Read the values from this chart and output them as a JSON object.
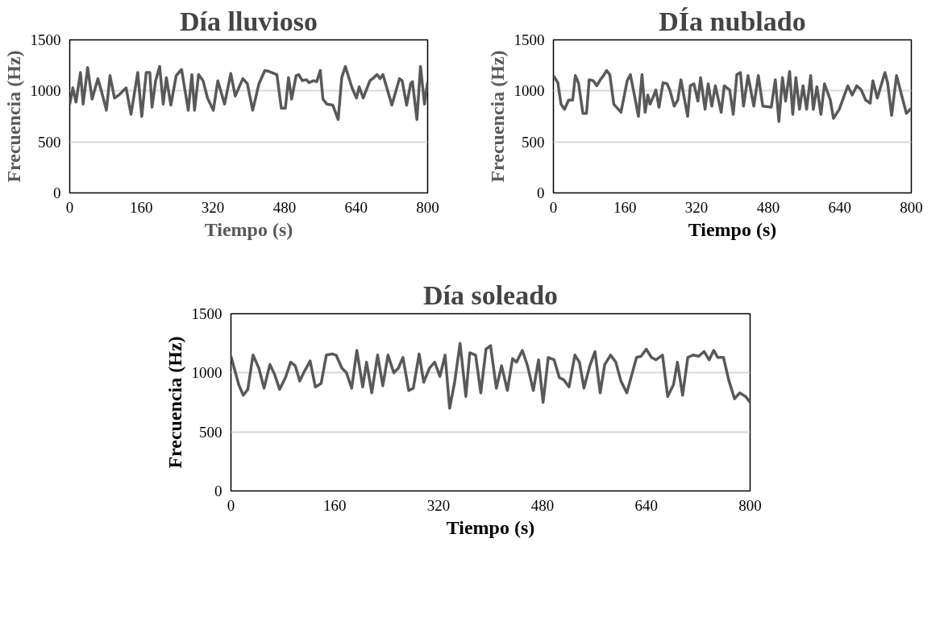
{
  "chart_data": [
    {
      "type": "line",
      "title": "Día lluvioso",
      "xlabel": "Tiempo (s)",
      "ylabel": "Frecuencia (Hz)",
      "xlim": [
        0,
        800
      ],
      "ylim": [
        0,
        1500
      ],
      "xticks": [
        0,
        160,
        320,
        480,
        640,
        800
      ],
      "yticks": [
        0,
        500,
        1000,
        1500
      ],
      "grid": "y",
      "series": [
        {
          "color": "#595959",
          "x": [
            0,
            7,
            14,
            24,
            30,
            40,
            50,
            63,
            70,
            82,
            90,
            100,
            110,
            126,
            137,
            152,
            161,
            171,
            179,
            184,
            192,
            201,
            209,
            216,
            226,
            238,
            250,
            265,
            273,
            279,
            288,
            298,
            308,
            321,
            331,
            346,
            360,
            370,
            387,
            397,
            409,
            423,
            436,
            446,
            463,
            473,
            482,
            489,
            496,
            506,
            512,
            520,
            529,
            535,
            545,
            552,
            560,
            566,
            575,
            588,
            600,
            608,
            616,
            631,
            641,
            647,
            656,
            671,
            677,
            687,
            694,
            700,
            720,
            737,
            743,
            753,
            762,
            766,
            776,
            784,
            793,
            800
          ],
          "values": [
            870,
            1030,
            890,
            1180,
            870,
            1230,
            920,
            1120,
            1010,
            810,
            1150,
            930,
            960,
            1030,
            770,
            1180,
            750,
            1180,
            1180,
            840,
            1100,
            1240,
            870,
            1130,
            860,
            1150,
            1210,
            810,
            1160,
            810,
            1160,
            1100,
            930,
            810,
            1100,
            870,
            1170,
            950,
            1120,
            1070,
            810,
            1070,
            1200,
            1190,
            1160,
            830,
            830,
            1130,
            920,
            1150,
            1160,
            1100,
            1110,
            1080,
            1100,
            1090,
            1200,
            920,
            870,
            860,
            720,
            1130,
            1240,
            1030,
            930,
            1040,
            930,
            1100,
            1120,
            1160,
            1120,
            1160,
            860,
            1120,
            1100,
            860,
            1070,
            1090,
            720,
            1240,
            870,
            1090
          ]
        }
      ]
    },
    {
      "type": "line",
      "title": "DÍa nublado",
      "xlabel": "Tiempo (s)",
      "ylabel": "Frecuencia (Hz)",
      "xlim": [
        0,
        800
      ],
      "ylim": [
        0,
        1500
      ],
      "xticks": [
        0,
        160,
        320,
        480,
        640,
        800
      ],
      "yticks": [
        0,
        500,
        1000,
        1500
      ],
      "grid": "y",
      "series": [
        {
          "color": "#595959",
          "x": [
            0,
            10,
            17,
            25,
            34,
            43,
            49,
            56,
            66,
            74,
            80,
            89,
            97,
            105,
            112,
            119,
            126,
            135,
            151,
            165,
            172,
            181,
            190,
            198,
            205,
            211,
            216,
            223,
            229,
            236,
            245,
            254,
            260,
            270,
            278,
            285,
            300,
            306,
            314,
            323,
            329,
            339,
            346,
            354,
            362,
            375,
            382,
            394,
            402,
            410,
            418,
            425,
            435,
            448,
            458,
            468,
            487,
            496,
            504,
            512,
            519,
            528,
            535,
            542,
            550,
            558,
            566,
            575,
            581,
            589,
            598,
            606,
            619,
            626,
            639,
            649,
            658,
            668,
            678,
            688,
            698,
            708,
            714,
            724,
            741,
            747,
            756,
            767,
            780,
            789,
            800
          ],
          "values": [
            1150,
            1080,
            870,
            820,
            910,
            910,
            1150,
            1080,
            780,
            780,
            1110,
            1100,
            1050,
            1110,
            1150,
            1200,
            1160,
            870,
            790,
            1100,
            1160,
            960,
            750,
            1160,
            790,
            960,
            870,
            940,
            1010,
            840,
            1080,
            1070,
            1010,
            850,
            910,
            1110,
            750,
            1050,
            1070,
            900,
            1130,
            820,
            1070,
            850,
            1050,
            790,
            1050,
            1010,
            770,
            1160,
            1180,
            850,
            1150,
            850,
            1150,
            850,
            840,
            1110,
            700,
            1130,
            900,
            1190,
            770,
            1130,
            820,
            1050,
            820,
            1150,
            820,
            1040,
            770,
            1070,
            910,
            730,
            820,
            940,
            1050,
            960,
            1050,
            1010,
            910,
            880,
            1100,
            930,
            1180,
            1080,
            760,
            1150,
            930,
            780,
            830
          ]
        }
      ]
    },
    {
      "type": "line",
      "title": "Día soleado",
      "xlabel": "Tiempo (s)",
      "ylabel": "Frecuencia (Hz)",
      "xlim": [
        0,
        800
      ],
      "ylim": [
        0,
        1500
      ],
      "xticks": [
        0,
        160,
        320,
        480,
        640,
        800
      ],
      "yticks": [
        0,
        500,
        1000,
        1500
      ],
      "grid": "y",
      "series": [
        {
          "color": "#595959",
          "x": [
            0,
            12,
            19,
            26,
            34,
            43,
            51,
            60,
            67,
            75,
            84,
            92,
            99,
            106,
            113,
            122,
            130,
            139,
            147,
            156,
            162,
            171,
            178,
            186,
            194,
            203,
            209,
            217,
            226,
            234,
            242,
            251,
            258,
            265,
            274,
            281,
            290,
            297,
            306,
            314,
            322,
            330,
            337,
            345,
            353,
            362,
            368,
            377,
            385,
            393,
            400,
            409,
            417,
            426,
            434,
            440,
            449,
            457,
            466,
            474,
            481,
            489,
            498,
            506,
            513,
            521,
            530,
            537,
            544,
            553,
            561,
            569,
            576,
            585,
            593,
            601,
            610,
            625,
            632,
            640,
            648,
            655,
            665,
            673,
            682,
            688,
            696,
            704,
            712,
            721,
            729,
            737,
            744,
            750,
            759,
            767,
            776,
            784,
            793,
            800
          ],
          "values": [
            1140,
            900,
            810,
            860,
            1150,
            1040,
            870,
            1070,
            990,
            860,
            960,
            1090,
            1060,
            930,
            1010,
            1100,
            880,
            910,
            1150,
            1160,
            1150,
            1040,
            1000,
            870,
            1190,
            880,
            1090,
            830,
            1150,
            890,
            1150,
            1000,
            1040,
            1130,
            850,
            870,
            1160,
            920,
            1040,
            1090,
            970,
            1150,
            700,
            930,
            1250,
            800,
            1170,
            1150,
            830,
            1200,
            1230,
            870,
            1060,
            850,
            1120,
            1090,
            1190,
            1060,
            850,
            1110,
            750,
            1130,
            1110,
            960,
            940,
            880,
            1150,
            1090,
            870,
            1060,
            1180,
            830,
            1070,
            1150,
            1090,
            930,
            830,
            1130,
            1140,
            1200,
            1130,
            1110,
            1150,
            800,
            900,
            1090,
            810,
            1130,
            1150,
            1140,
            1180,
            1110,
            1190,
            1130,
            1130,
            940,
            780,
            830,
            800,
            750
          ]
        }
      ]
    }
  ]
}
